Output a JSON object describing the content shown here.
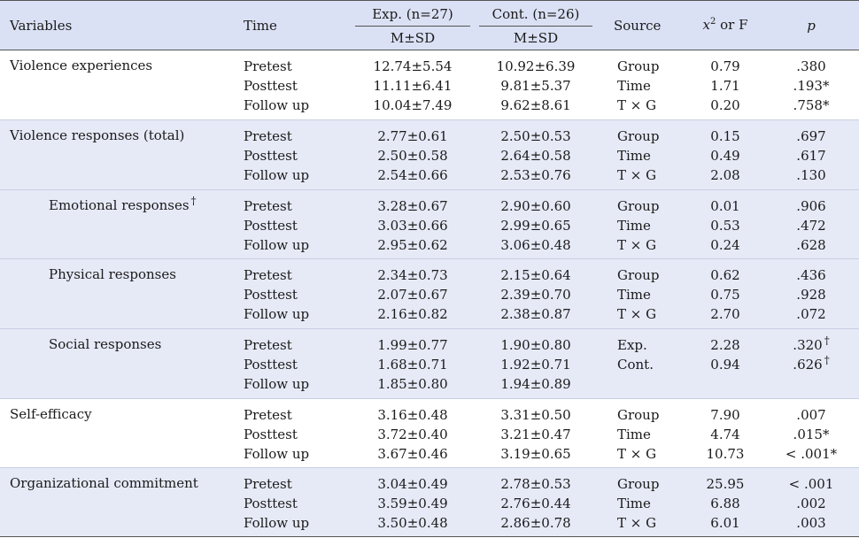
{
  "header": {
    "variables": "Variables",
    "time": "Time",
    "exp_group": "Exp. (n=27)",
    "cont_group": "Cont. (n=26)",
    "msd": "M±SD",
    "source": "Source",
    "stat_chi": "x",
    "stat_sup": "2",
    "stat_rest": " or F",
    "p": "p"
  },
  "dagger": "†",
  "groups": [
    {
      "label": "Violence experiences",
      "rows": [
        {
          "time": "Pretest",
          "exp": "12.74±5.54",
          "cont": "10.92±6.39",
          "source": "Group",
          "stat": "0.79",
          "p": ".380"
        },
        {
          "time": "Posttest",
          "exp": "11.11±6.41",
          "cont": "9.81±5.37",
          "source": "Time",
          "stat": "1.71",
          "p": ".193*"
        },
        {
          "time": "Follow up",
          "exp": "10.04±7.49",
          "cont": "9.62±8.61",
          "source": "T × G",
          "stat": "0.20",
          "p": ".758*"
        }
      ]
    },
    {
      "label": "Violence responses (total)",
      "rows": [
        {
          "time": "Pretest",
          "exp": "2.77±0.61",
          "cont": "2.50±0.53",
          "source": "Group",
          "stat": "0.15",
          "p": ".697"
        },
        {
          "time": "Posttest",
          "exp": "2.50±0.58",
          "cont": "2.64±0.58",
          "source": "Time",
          "stat": "0.49",
          "p": ".617"
        },
        {
          "time": "Follow up",
          "exp": "2.54±0.66",
          "cont": "2.53±0.76",
          "source": "T × G",
          "stat": "2.08",
          "p": ".130"
        }
      ]
    },
    {
      "label": "Emotional responses",
      "rows": [
        {
          "time": "Pretest",
          "exp": "3.28±0.67",
          "cont": "2.90±0.60",
          "source": "Group",
          "stat": "0.01",
          "p": ".906"
        },
        {
          "time": "Posttest",
          "exp": "3.03±0.66",
          "cont": "2.99±0.65",
          "source": "Time",
          "stat": "0.53",
          "p": ".472"
        },
        {
          "time": "Follow up",
          "exp": "2.95±0.62",
          "cont": "3.06±0.48",
          "source": "T × G",
          "stat": "0.24",
          "p": ".628"
        }
      ]
    },
    {
      "label": "Physical responses",
      "rows": [
        {
          "time": "Pretest",
          "exp": "2.34±0.73",
          "cont": "2.15±0.64",
          "source": "Group",
          "stat": "0.62",
          "p": ".436"
        },
        {
          "time": "Posttest",
          "exp": "2.07±0.67",
          "cont": "2.39±0.70",
          "source": "Time",
          "stat": "0.75",
          "p": ".928"
        },
        {
          "time": "Follow up",
          "exp": "2.16±0.82",
          "cont": "2.38±0.87",
          "source": "T × G",
          "stat": "2.70",
          "p": ".072"
        }
      ]
    },
    {
      "label": "Social responses",
      "rows": [
        {
          "time": "Pretest",
          "exp": "1.99±0.77",
          "cont": "1.90±0.80",
          "source": "Exp.",
          "stat": "2.28",
          "p": ".320"
        },
        {
          "time": "Posttest",
          "exp": "1.68±0.71",
          "cont": "1.92±0.71",
          "source": "Cont.",
          "stat": "0.94",
          "p": ".626"
        },
        {
          "time": "Follow up",
          "exp": "1.85±0.80",
          "cont": "1.94±0.89",
          "source": "",
          "stat": "",
          "p": ""
        }
      ]
    },
    {
      "label": "Self-efficacy",
      "rows": [
        {
          "time": "Pretest",
          "exp": "3.16±0.48",
          "cont": "3.31±0.50",
          "source": "Group",
          "stat": "7.90",
          "p": ".007"
        },
        {
          "time": "Posttest",
          "exp": "3.72±0.40",
          "cont": "3.21±0.47",
          "source": "Time",
          "stat": "4.74",
          "p": ".015*"
        },
        {
          "time": "Follow up",
          "exp": "3.67±0.46",
          "cont": "3.19±0.65",
          "source": "T × G",
          "stat": "10.73",
          "p": "< .001*"
        }
      ]
    },
    {
      "label": "Organizational commitment",
      "rows": [
        {
          "time": "Pretest",
          "exp": "3.04±0.49",
          "cont": "2.78±0.53",
          "source": "Group",
          "stat": "25.95",
          "p": "< .001"
        },
        {
          "time": "Posttest",
          "exp": "3.59±0.49",
          "cont": "2.76±0.44",
          "source": "Time",
          "stat": "6.88",
          "p": ".002"
        },
        {
          "time": "Follow up",
          "exp": "3.50±0.48",
          "cont": "2.86±0.78",
          "source": "T × G",
          "stat": "6.01",
          "p": ".003"
        }
      ]
    }
  ]
}
